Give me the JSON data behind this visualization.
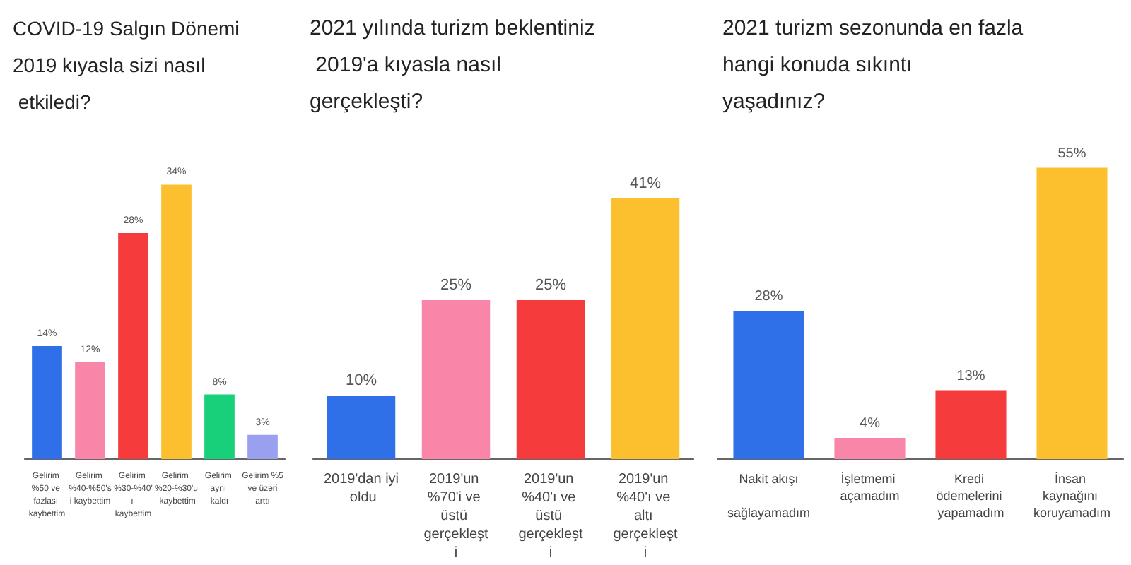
{
  "chart_data": [
    {
      "type": "bar",
      "title": "COVID-19 Salgın Dönemi 2019 kıyasla sizi nasıl etkiledi?",
      "categories": [
        "Gelirim %50 ve fazlası kaybettim",
        "Gelirim %40-%50'si kaybettim",
        "Gelirim %30-%40'ı kaybettim",
        "Gelirim %20-%30'u kaybettim",
        "Gelirim aynı kaldı",
        "Gelirim %5 ve üzeri arttı"
      ],
      "values": [
        14,
        12,
        28,
        34,
        8,
        3
      ],
      "value_labels": [
        "14%",
        "12%",
        "28%",
        "34%",
        "8%",
        "3%"
      ],
      "colors": [
        "#2f6fe8",
        "#f985a8",
        "#f53b3b",
        "#fcc02f",
        "#19d07a",
        "#9aa0f0"
      ]
    },
    {
      "type": "bar",
      "title": "2021 yılında turizm beklentiniz 2019'a kıyasla nasıl gerçekleşti?",
      "categories": [
        "2019'dan iyi oldu",
        "2019'un %70'i ve üstü gerçekleşti",
        "2019'un %40'ı ve üstü gerçekleşti",
        "2019'un %40'ı ve altı gerçekleşti"
      ],
      "values": [
        10,
        25,
        25,
        41
      ],
      "value_labels": [
        "10%",
        "25%",
        "25%",
        "41%"
      ],
      "colors": [
        "#2f6fe8",
        "#f985a8",
        "#f53b3b",
        "#fcc02f"
      ]
    },
    {
      "type": "bar",
      "title": "2021 turizm sezonunda en fazla hangi konuda sıkıntı yaşadınız?",
      "categories": [
        "Nakit akışı sağlayamadım",
        "İşletmemi açamadım",
        "Kredi ödemelerini yapamadım",
        "İnsan kaynağını koruyamadım"
      ],
      "values": [
        28,
        4,
        13,
        55
      ],
      "value_labels": [
        "28%",
        "4%",
        "13%",
        "55%"
      ],
      "colors": [
        "#2f6fe8",
        "#f985a8",
        "#f53b3b",
        "#fcc02f"
      ]
    }
  ]
}
